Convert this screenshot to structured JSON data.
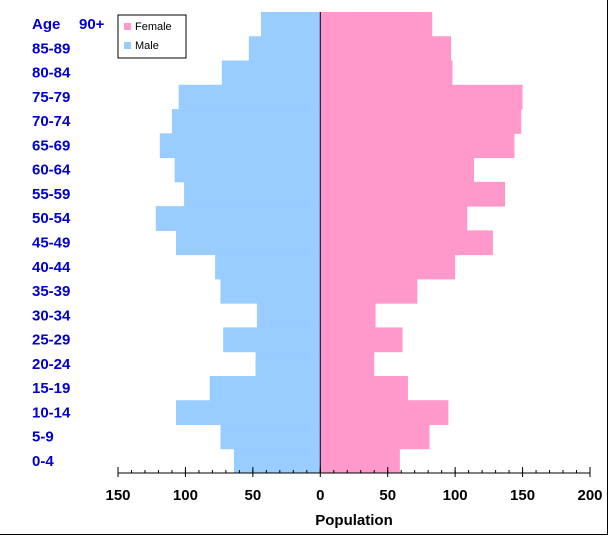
{
  "chart_data": {
    "type": "bar",
    "orientation": "horizontal",
    "layout": "population-pyramid",
    "title": "",
    "y_axis_header": "Age",
    "xlabel": "Population",
    "ylabel": "",
    "categories": [
      "0-4",
      "5-9",
      "10-14",
      "15-19",
      "20-24",
      "25-29",
      "30-34",
      "35-39",
      "40-44",
      "45-49",
      "50-54",
      "55-59",
      "60-64",
      "65-69",
      "70-74",
      "75-79",
      "80-84",
      "85-89",
      "90+"
    ],
    "series": [
      {
        "name": "Male",
        "side": "left",
        "color": "#99ccff",
        "values": [
          64,
          74,
          107,
          82,
          48,
          72,
          47,
          74,
          78,
          107,
          122,
          101,
          108,
          119,
          110,
          105,
          73,
          53,
          44
        ]
      },
      {
        "name": "Female",
        "side": "right",
        "color": "#ff99cc",
        "values": [
          59,
          81,
          95,
          65,
          40,
          61,
          41,
          72,
          100,
          128,
          109,
          137,
          114,
          144,
          149,
          150,
          98,
          97,
          83
        ]
      }
    ],
    "xlim": [
      -150,
      200
    ],
    "xticks": [
      -150,
      -100,
      -50,
      0,
      50,
      100,
      150,
      200
    ],
    "xtick_labels": [
      "150",
      "100",
      "50",
      "0",
      "50",
      "100",
      "150",
      "200"
    ],
    "grid": false,
    "legend_position": "top-left",
    "center_line_color": "#000000",
    "category_label_color": "#0000cc"
  }
}
